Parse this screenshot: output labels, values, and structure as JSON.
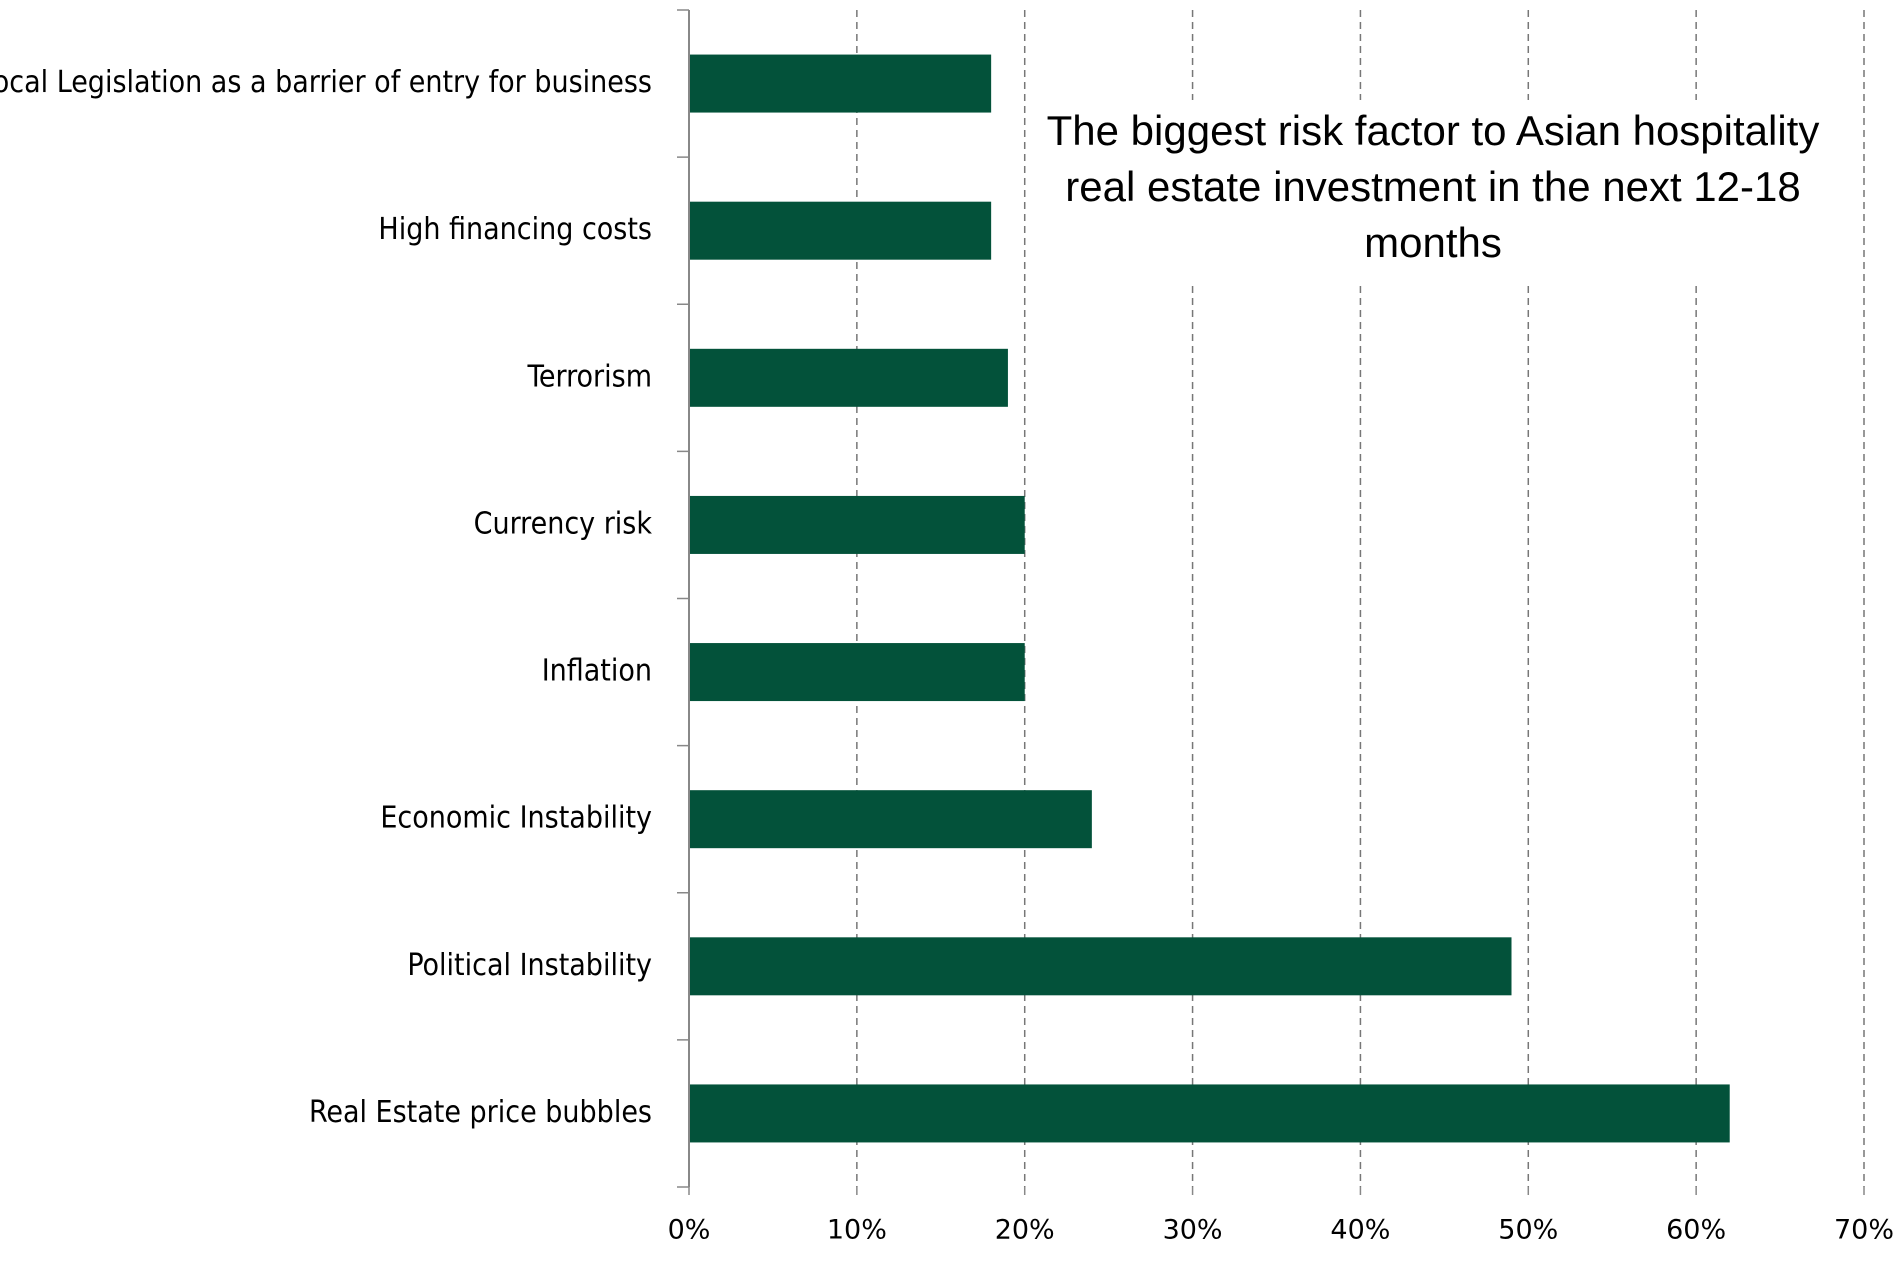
{
  "chart_data": {
    "type": "barh",
    "title": [
      "The biggest risk factor  to Asian hospitality",
      "real estate investment in the next 12-18",
      "months"
    ],
    "categories": [
      "Local Legislation as a barrier of entry for business",
      "High financing costs",
      "Terrorism",
      "Currency risk",
      "Inflation",
      "Economic Instability",
      "Political Instability",
      "Real Estate price bubbles"
    ],
    "values": [
      18,
      18,
      19,
      20,
      20,
      24,
      49,
      62
    ],
    "color": "#03523a",
    "xlim": [
      0,
      70
    ],
    "xticks": [
      {
        "value": 0,
        "label": "0%"
      },
      {
        "value": 10,
        "label": "10%"
      },
      {
        "value": 20,
        "label": "20%"
      },
      {
        "value": 30,
        "label": "30%"
      },
      {
        "value": 40,
        "label": "40%"
      },
      {
        "value": 50,
        "label": "50%"
      },
      {
        "value": 60,
        "label": "60%"
      },
      {
        "value": 70,
        "label": "70%"
      }
    ],
    "grid": true
  }
}
